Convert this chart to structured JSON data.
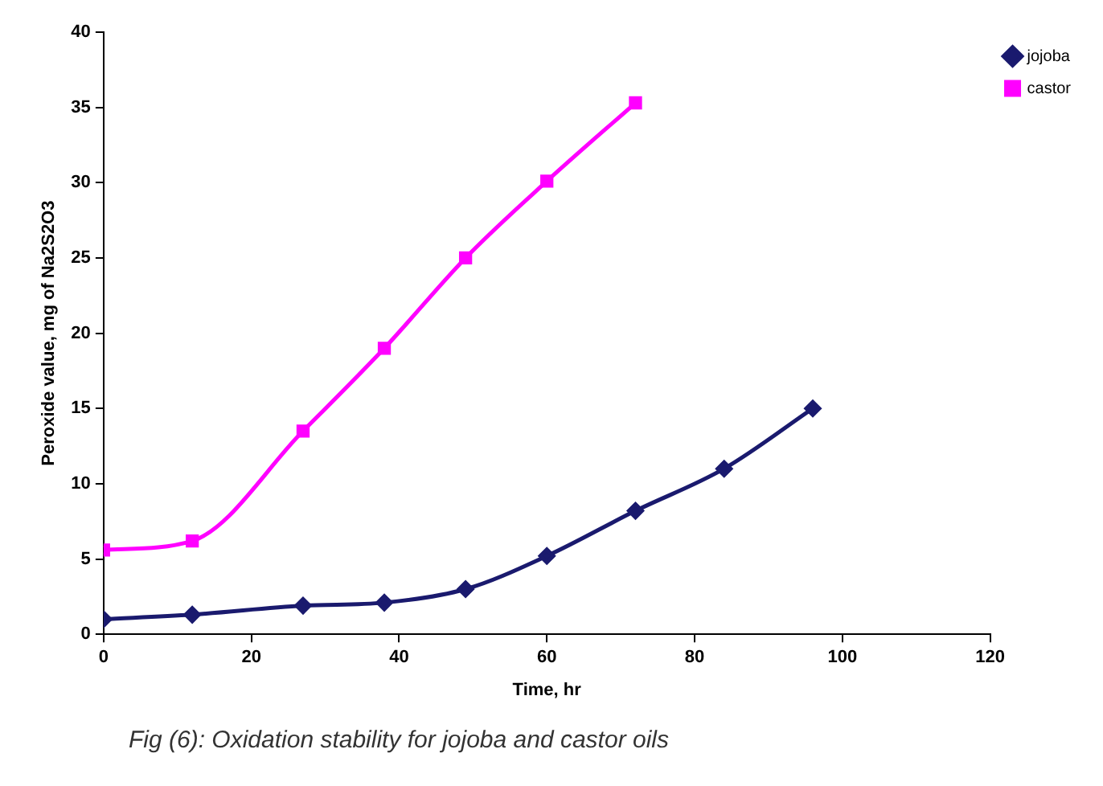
{
  "chart_data": {
    "type": "line",
    "xlabel": "Time, hr",
    "ylabel": "Peroxide value, mg of Na2S2O3",
    "xlim": [
      0,
      120
    ],
    "xticks": [
      0,
      20,
      40,
      60,
      80,
      100,
      120
    ],
    "ylim": [
      0,
      40
    ],
    "yticks": [
      0,
      5,
      10,
      15,
      20,
      25,
      30,
      35,
      40
    ],
    "grid": false,
    "legend": "top right",
    "series": [
      {
        "name": "jojoba",
        "color": "#1a1a6e",
        "marker": "diamond",
        "x": [
          0,
          12,
          27,
          38,
          49,
          60,
          72,
          84,
          96
        ],
        "values": [
          1,
          1.3,
          1.9,
          2.1,
          3,
          5.2,
          8.2,
          11,
          15
        ]
      },
      {
        "name": "castor",
        "color": "#ff00ff",
        "marker": "square",
        "x": [
          0,
          12,
          27,
          38,
          49,
          60,
          72
        ],
        "values": [
          5.6,
          6.2,
          13.5,
          19,
          25,
          30.1,
          35.3
        ]
      }
    ],
    "annotations": [
      "Fig (6): Oxidation stability for jojoba and castor oils"
    ]
  }
}
